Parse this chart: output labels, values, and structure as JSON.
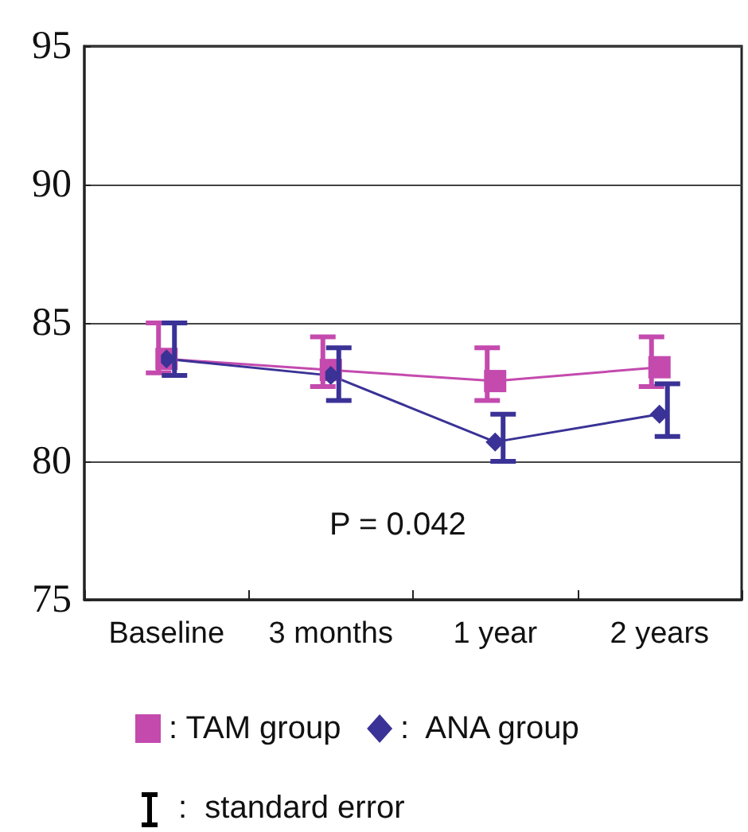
{
  "chart_data": {
    "type": "line",
    "categories": [
      "Baseline",
      "3 months",
      "1 year",
      "2 years"
    ],
    "ylim": [
      75,
      95
    ],
    "yticks": [
      75,
      80,
      85,
      90,
      95
    ],
    "grid": "y",
    "legend": "bottom",
    "series": [
      {
        "name": ": TAM group",
        "color": "#c44aae",
        "marker": "square",
        "values": [
          83.7,
          83.3,
          82.9,
          83.4
        ],
        "errors": [
          [
            83.2,
            85.0
          ],
          [
            82.7,
            84.5
          ],
          [
            82.2,
            84.1
          ],
          [
            82.7,
            84.5
          ]
        ]
      },
      {
        "name": ":  ANA group",
        "color": "#3a3296",
        "marker": "diamond",
        "values": [
          83.7,
          83.1,
          80.7,
          81.7
        ],
        "errors": [
          [
            83.1,
            85.0
          ],
          [
            82.2,
            84.1
          ],
          [
            80.0,
            81.7
          ],
          [
            80.9,
            82.8
          ]
        ]
      }
    ],
    "annotations": [
      "P = 0.042",
      ":  standard error"
    ]
  }
}
